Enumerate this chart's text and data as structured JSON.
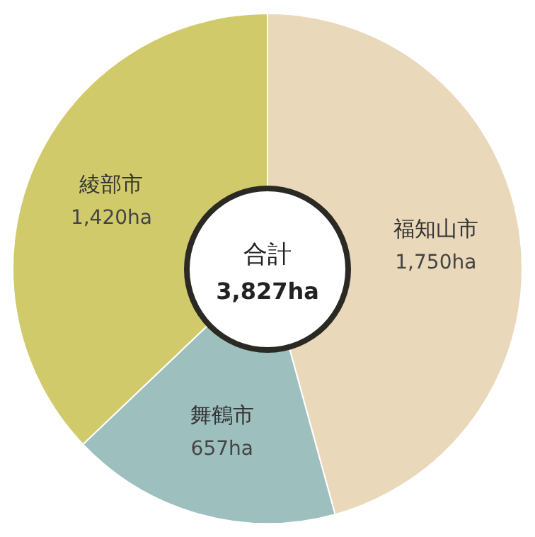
{
  "chart_data": {
    "type": "donut",
    "categories": [
      "福知山市",
      "舞鶴市",
      "綾部市"
    ],
    "values": [
      1750,
      657,
      1420
    ],
    "value_labels": [
      "1,750ha",
      "657ha",
      "1,420ha"
    ],
    "colors": [
      "#ead8ba",
      "#9dbfbe",
      "#d1ca6b"
    ],
    "annotations": [
      "合計",
      "3,827ha"
    ]
  }
}
